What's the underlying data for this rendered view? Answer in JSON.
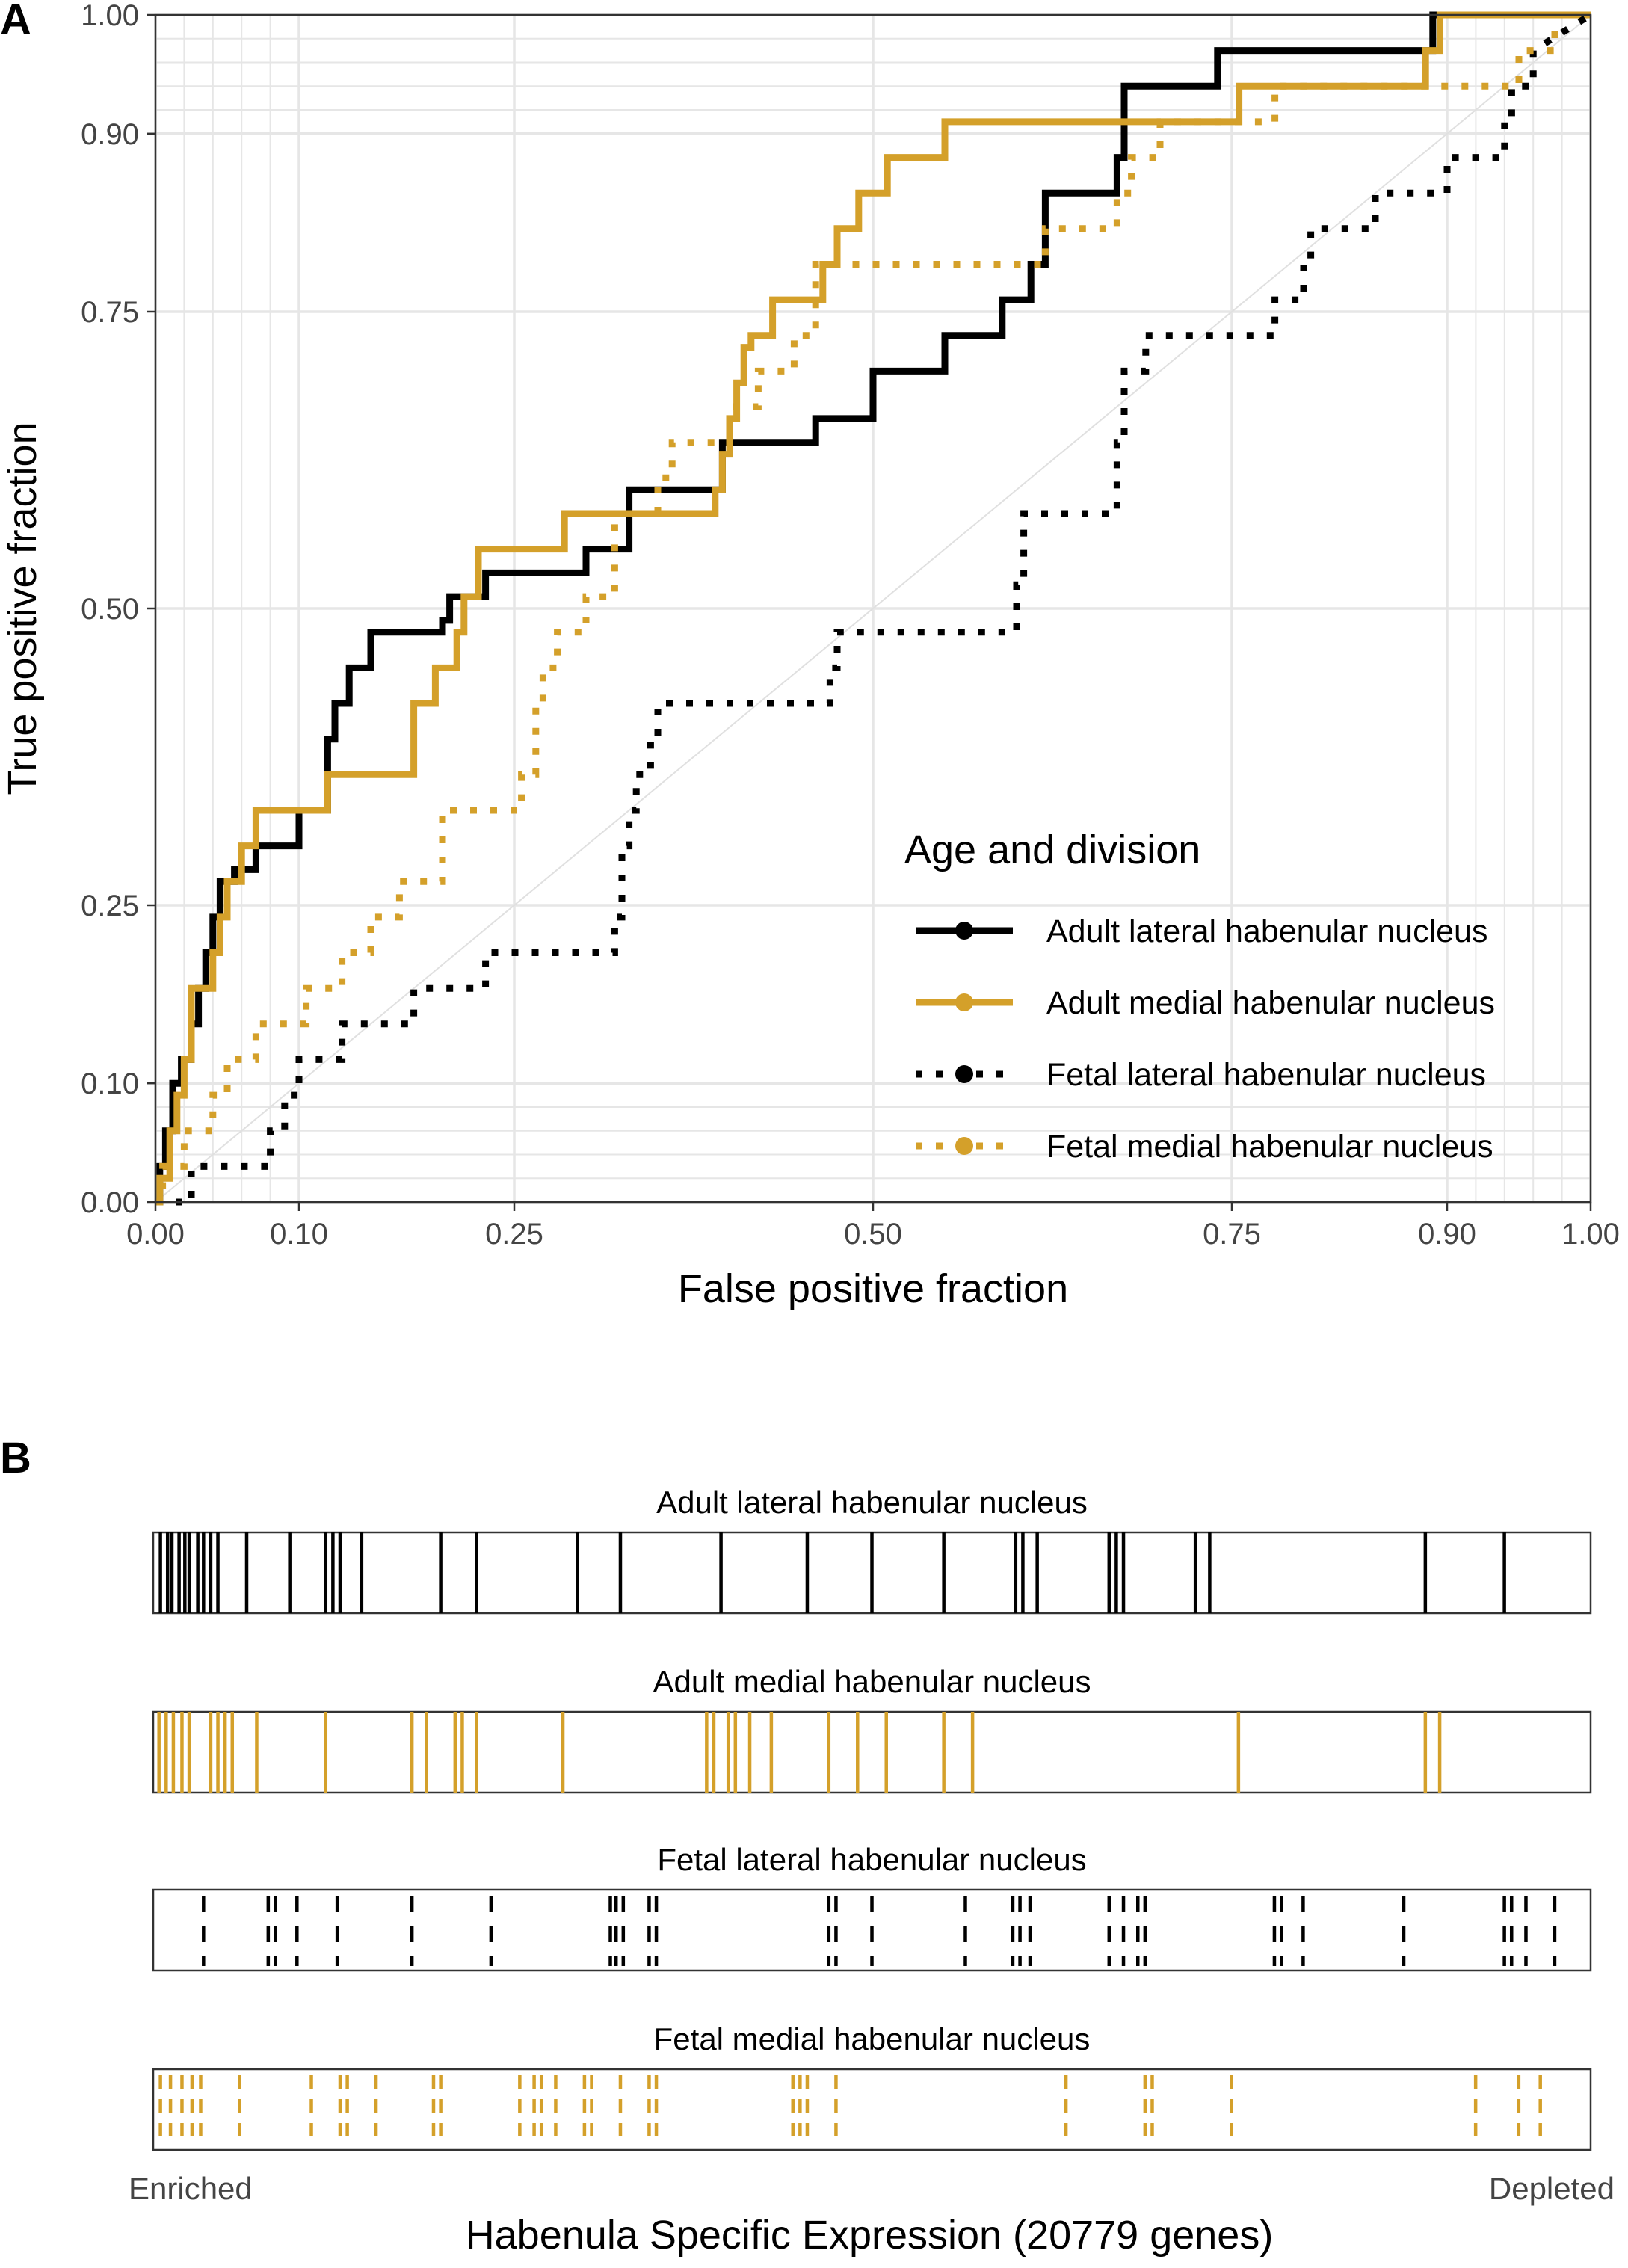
{
  "panels": {
    "a_label": "A",
    "b_label": "B"
  },
  "colors": {
    "lateral": "#000000",
    "medial": "#d4a02a",
    "grid": "#e6e6e6",
    "diagonal": "#e0e0e0"
  },
  "chart_data": [
    {
      "type": "line",
      "title": "",
      "xlabel": "False positive fraction",
      "ylabel": "True positive fraction",
      "xlim": [
        0,
        1
      ],
      "ylim": [
        0,
        1
      ],
      "x_ticks": [
        "0.00",
        "0.10",
        "0.25",
        "0.50",
        "0.75",
        "0.90",
        "1.00"
      ],
      "y_ticks": [
        "0.00",
        "0.10",
        "0.25",
        "0.50",
        "0.75",
        "0.90",
        "1.00"
      ],
      "grid": true,
      "legend": {
        "title": "Age and division",
        "position": "bottom-right"
      },
      "series": [
        {
          "name": "Adult lateral habenular nucleus",
          "color": "#000000",
          "style": "solid",
          "x": [
            0,
            0.003,
            0.003,
            0.007,
            0.007,
            0.012,
            0.012,
            0.018,
            0.018,
            0.025,
            0.025,
            0.03,
            0.03,
            0.035,
            0.035,
            0.04,
            0.04,
            0.045,
            0.045,
            0.055,
            0.055,
            0.07,
            0.07,
            0.1,
            0.1,
            0.12,
            0.12,
            0.125,
            0.125,
            0.135,
            0.135,
            0.15,
            0.15,
            0.2,
            0.2,
            0.205,
            0.205,
            0.23,
            0.23,
            0.3,
            0.3,
            0.33,
            0.33,
            0.395,
            0.395,
            0.46,
            0.46,
            0.5,
            0.5,
            0.55,
            0.55,
            0.59,
            0.59,
            0.61,
            0.61,
            0.62,
            0.62,
            0.67,
            0.67,
            0.675,
            0.675,
            0.73,
            0.73,
            0.74,
            0.74,
            0.89,
            0.89,
            0.94,
            0.94,
            1.0
          ],
          "y": [
            0,
            0,
            0.03,
            0.03,
            0.06,
            0.06,
            0.1,
            0.1,
            0.12,
            0.12,
            0.15,
            0.15,
            0.18,
            0.18,
            0.21,
            0.21,
            0.24,
            0.24,
            0.27,
            0.27,
            0.28,
            0.28,
            0.3,
            0.3,
            0.33,
            0.33,
            0.39,
            0.39,
            0.42,
            0.42,
            0.45,
            0.45,
            0.48,
            0.48,
            0.49,
            0.49,
            0.51,
            0.51,
            0.53,
            0.53,
            0.55,
            0.55,
            0.6,
            0.6,
            0.64,
            0.64,
            0.66,
            0.66,
            0.7,
            0.7,
            0.73,
            0.73,
            0.76,
            0.76,
            0.79,
            0.79,
            0.85,
            0.85,
            0.88,
            0.88,
            0.94,
            0.94,
            0.94,
            0.94,
            0.97,
            0.97,
            1.0,
            1.0,
            1.0,
            1.0
          ]
        },
        {
          "name": "Adult medial habenular nucleus",
          "color": "#d4a02a",
          "style": "solid",
          "x": [
            0,
            0.003,
            0.003,
            0.01,
            0.01,
            0.015,
            0.015,
            0.02,
            0.02,
            0.025,
            0.025,
            0.04,
            0.04,
            0.045,
            0.045,
            0.05,
            0.05,
            0.06,
            0.06,
            0.07,
            0.07,
            0.12,
            0.12,
            0.18,
            0.18,
            0.195,
            0.195,
            0.21,
            0.21,
            0.215,
            0.215,
            0.225,
            0.225,
            0.285,
            0.285,
            0.39,
            0.39,
            0.395,
            0.395,
            0.4,
            0.4,
            0.405,
            0.405,
            0.41,
            0.41,
            0.415,
            0.415,
            0.43,
            0.43,
            0.465,
            0.465,
            0.475,
            0.475,
            0.49,
            0.49,
            0.51,
            0.51,
            0.55,
            0.55,
            0.57,
            0.57,
            0.755,
            0.755,
            0.885,
            0.885,
            0.895,
            0.895,
            1.0
          ],
          "y": [
            0,
            0,
            0.02,
            0.02,
            0.06,
            0.06,
            0.09,
            0.09,
            0.12,
            0.12,
            0.18,
            0.18,
            0.21,
            0.21,
            0.24,
            0.24,
            0.27,
            0.27,
            0.3,
            0.3,
            0.33,
            0.33,
            0.36,
            0.36,
            0.42,
            0.42,
            0.45,
            0.45,
            0.48,
            0.48,
            0.51,
            0.51,
            0.55,
            0.55,
            0.58,
            0.58,
            0.6,
            0.6,
            0.63,
            0.63,
            0.66,
            0.66,
            0.69,
            0.69,
            0.72,
            0.72,
            0.73,
            0.73,
            0.76,
            0.76,
            0.79,
            0.79,
            0.82,
            0.82,
            0.85,
            0.85,
            0.88,
            0.88,
            0.91,
            0.91,
            0.91,
            0.91,
            0.94,
            0.94,
            0.97,
            0.97,
            1.0,
            1.0
          ]
        },
        {
          "name": "Fetal lateral habenular nucleus",
          "color": "#000000",
          "style": "dotted",
          "x": [
            0,
            0.025,
            0.025,
            0.08,
            0.08,
            0.09,
            0.09,
            0.1,
            0.1,
            0.13,
            0.13,
            0.18,
            0.18,
            0.23,
            0.23,
            0.32,
            0.32,
            0.325,
            0.325,
            0.33,
            0.33,
            0.335,
            0.335,
            0.345,
            0.345,
            0.35,
            0.35,
            0.47,
            0.47,
            0.475,
            0.475,
            0.6,
            0.6,
            0.605,
            0.605,
            0.67,
            0.67,
            0.675,
            0.675,
            0.69,
            0.69,
            0.78,
            0.78,
            0.8,
            0.8,
            0.805,
            0.805,
            0.85,
            0.85,
            0.9,
            0.9,
            0.94,
            0.94,
            0.945,
            0.945,
            0.96,
            0.96,
            1.0
          ],
          "y": [
            0,
            0,
            0.03,
            0.03,
            0.06,
            0.06,
            0.09,
            0.09,
            0.12,
            0.12,
            0.15,
            0.15,
            0.18,
            0.18,
            0.21,
            0.21,
            0.24,
            0.24,
            0.3,
            0.3,
            0.33,
            0.33,
            0.36,
            0.36,
            0.39,
            0.39,
            0.42,
            0.42,
            0.45,
            0.45,
            0.48,
            0.48,
            0.52,
            0.52,
            0.58,
            0.58,
            0.64,
            0.64,
            0.7,
            0.7,
            0.73,
            0.73,
            0.76,
            0.76,
            0.79,
            0.79,
            0.82,
            0.82,
            0.85,
            0.85,
            0.88,
            0.88,
            0.91,
            0.91,
            0.94,
            0.94,
            0.97,
            1.0
          ]
        },
        {
          "name": "Fetal medial habenular nucleus",
          "color": "#d4a02a",
          "style": "dotted",
          "x": [
            0,
            0.005,
            0.005,
            0.02,
            0.02,
            0.04,
            0.04,
            0.05,
            0.05,
            0.07,
            0.07,
            0.105,
            0.105,
            0.13,
            0.13,
            0.15,
            0.15,
            0.17,
            0.17,
            0.2,
            0.2,
            0.255,
            0.255,
            0.265,
            0.265,
            0.27,
            0.27,
            0.28,
            0.28,
            0.3,
            0.3,
            0.32,
            0.32,
            0.35,
            0.35,
            0.36,
            0.36,
            0.4,
            0.4,
            0.42,
            0.42,
            0.445,
            0.445,
            0.46,
            0.46,
            0.62,
            0.62,
            0.67,
            0.67,
            0.68,
            0.68,
            0.7,
            0.7,
            0.78,
            0.78,
            0.95,
            0.95,
            0.975,
            0.975,
            1.0
          ],
          "y": [
            0,
            0,
            0.03,
            0.03,
            0.06,
            0.06,
            0.09,
            0.09,
            0.12,
            0.12,
            0.15,
            0.15,
            0.18,
            0.18,
            0.21,
            0.21,
            0.24,
            0.24,
            0.27,
            0.27,
            0.33,
            0.33,
            0.36,
            0.36,
            0.42,
            0.42,
            0.45,
            0.45,
            0.48,
            0.48,
            0.51,
            0.51,
            0.58,
            0.58,
            0.61,
            0.61,
            0.64,
            0.64,
            0.67,
            0.67,
            0.7,
            0.7,
            0.73,
            0.73,
            0.79,
            0.79,
            0.82,
            0.82,
            0.85,
            0.85,
            0.88,
            0.88,
            0.91,
            0.91,
            0.94,
            0.94,
            0.97,
            0.97,
            1.0,
            1.0
          ]
        }
      ]
    },
    {
      "type": "barcode",
      "xlabel": "Habenula Specific Expression (20779 genes)",
      "left_label": "Enriched",
      "right_label": "Depleted",
      "strips": [
        {
          "name": "Adult lateral habenular nucleus",
          "color": "#000000",
          "style": "solid",
          "ranks": [
            0.005,
            0.01,
            0.013,
            0.018,
            0.022,
            0.025,
            0.031,
            0.035,
            0.04,
            0.045,
            0.065,
            0.095,
            0.12,
            0.125,
            0.13,
            0.145,
            0.2,
            0.225,
            0.295,
            0.325,
            0.395,
            0.455,
            0.5,
            0.55,
            0.6,
            0.605,
            0.615,
            0.665,
            0.67,
            0.675,
            0.725,
            0.735,
            0.885,
            0.94
          ]
        },
        {
          "name": "Adult medial habenular nucleus",
          "color": "#d4a02a",
          "style": "solid",
          "ranks": [
            0.004,
            0.009,
            0.014,
            0.02,
            0.025,
            0.04,
            0.045,
            0.05,
            0.055,
            0.072,
            0.12,
            0.18,
            0.19,
            0.21,
            0.215,
            0.225,
            0.285,
            0.385,
            0.39,
            0.4,
            0.405,
            0.415,
            0.43,
            0.47,
            0.49,
            0.51,
            0.55,
            0.57,
            0.755,
            0.885,
            0.895
          ]
        },
        {
          "name": "Fetal lateral habenular nucleus",
          "color": "#000000",
          "style": "dashed",
          "ranks": [
            0.035,
            0.08,
            0.085,
            0.1,
            0.128,
            0.18,
            0.235,
            0.318,
            0.322,
            0.327,
            0.345,
            0.35,
            0.47,
            0.475,
            0.5,
            0.565,
            0.598,
            0.603,
            0.61,
            0.665,
            0.675,
            0.685,
            0.69,
            0.78,
            0.785,
            0.8,
            0.87,
            0.94,
            0.945,
            0.955,
            0.975
          ]
        },
        {
          "name": "Fetal medial habenular nucleus",
          "color": "#d4a02a",
          "style": "dashed",
          "ranks": [
            0.005,
            0.012,
            0.02,
            0.027,
            0.033,
            0.06,
            0.11,
            0.13,
            0.135,
            0.155,
            0.195,
            0.2,
            0.255,
            0.265,
            0.27,
            0.28,
            0.3,
            0.305,
            0.325,
            0.345,
            0.35,
            0.445,
            0.45,
            0.455,
            0.475,
            0.635,
            0.69,
            0.695,
            0.75,
            0.92,
            0.95,
            0.965
          ]
        }
      ]
    }
  ]
}
